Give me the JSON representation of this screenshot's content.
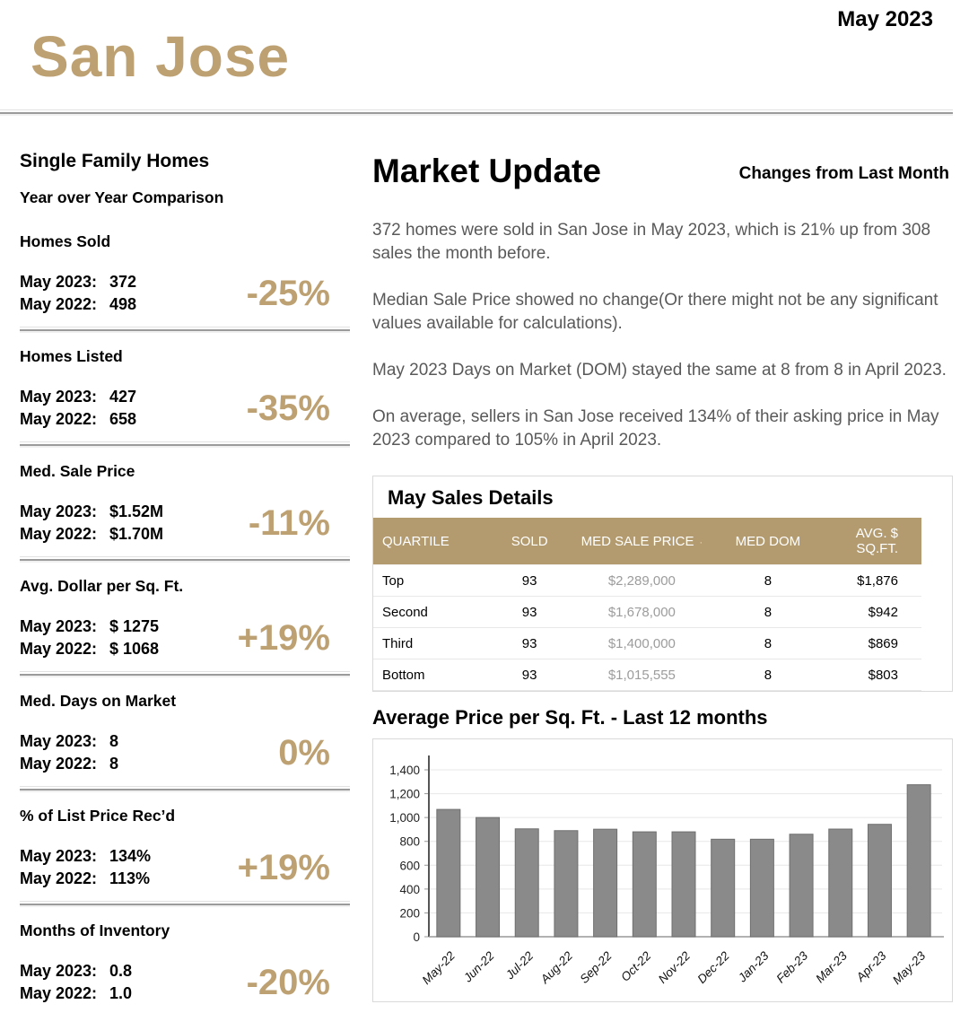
{
  "page": {
    "month_label": "May 2023",
    "city": "San Jose"
  },
  "colors": {
    "accent_tan": "#bda173",
    "table_header_bg": "#b39b6f",
    "body_text_gray": "#595959",
    "price_col_gray": "#9c9c9c",
    "bar_fill": "#8a8a8a",
    "bar_border": "#6f6f6f"
  },
  "left": {
    "title": "Single Family Homes",
    "subtitle": "Year over Year Comparison",
    "row_labels": [
      "May 2023:",
      "May 2022:"
    ],
    "sections": [
      {
        "label": "Homes Sold",
        "v2023": "372",
        "v2022": "498",
        "pct": "-25%"
      },
      {
        "label": "Homes Listed",
        "v2023": "427",
        "v2022": "658",
        "pct": "-35%"
      },
      {
        "label": "Med. Sale Price",
        "v2023": "$1.52M",
        "v2022": "$1.70M",
        "pct": "-11%"
      },
      {
        "label": "Avg. Dollar per Sq. Ft.",
        "v2023": "$ 1275",
        "v2022": "$ 1068",
        "pct": "+19%"
      },
      {
        "label": "Med. Days on Market",
        "v2023": "8",
        "v2022": "8",
        "pct": "0%"
      },
      {
        "label": "% of List Price Rec’d",
        "v2023": "134%",
        "v2022": "113%",
        "pct": "+19%"
      },
      {
        "label": "Months of Inventory",
        "v2023": "0.8",
        "v2022": "1.0",
        "pct": "-20%"
      }
    ]
  },
  "market_update": {
    "title": "Market Update",
    "subtitle": "Changes from Last Month",
    "paragraphs": [
      "372 homes were sold in San Jose in May 2023, which is 21% up from 308 sales the month before.",
      "Median Sale Price showed no change(Or there might not be any significant values available for calculations).",
      "May 2023 Days on Market (DOM) stayed the same at 8 from 8 in April 2023.",
      "On average, sellers in San Jose received 134% of their asking price in May 2023 compared to 105% in April 2023."
    ]
  },
  "sales_table": {
    "title": "May Sales Details",
    "sort_dot": "·",
    "headers": [
      "QUARTILE",
      "SOLD",
      "MED SALE PRICE",
      "MED DOM",
      "AVG. $ SQ.FT."
    ],
    "rows": [
      {
        "quartile": "Top",
        "sold": "93",
        "med_sale_price": "$2,289,000",
        "med_dom": "8",
        "avg_sqft": "$1,876"
      },
      {
        "quartile": "Second",
        "sold": "93",
        "med_sale_price": "$1,678,000",
        "med_dom": "8",
        "avg_sqft": "$942"
      },
      {
        "quartile": "Third",
        "sold": "93",
        "med_sale_price": "$1,400,000",
        "med_dom": "8",
        "avg_sqft": "$869"
      },
      {
        "quartile": "Bottom",
        "sold": "93",
        "med_sale_price": "$1,015,555",
        "med_dom": "8",
        "avg_sqft": "$803"
      }
    ]
  },
  "chart_data": {
    "type": "bar",
    "title": "Average Price per Sq. Ft. - Last 12 months",
    "categories": [
      "May-22",
      "Jun-22",
      "Jul-22",
      "Aug-22",
      "Sep-22",
      "Oct-22",
      "Nov-22",
      "Dec-22",
      "Jan-23",
      "Feb-23",
      "Mar-23",
      "Apr-23",
      "May-23"
    ],
    "values": [
      1068,
      1000,
      905,
      890,
      902,
      880,
      880,
      818,
      818,
      860,
      903,
      943,
      1275
    ],
    "xlabel": "",
    "ylabel": "",
    "ylim": [
      0,
      1400
    ],
    "ytick_step": 200,
    "grid": true,
    "legend": "none",
    "xlabel_rotation": -45
  }
}
